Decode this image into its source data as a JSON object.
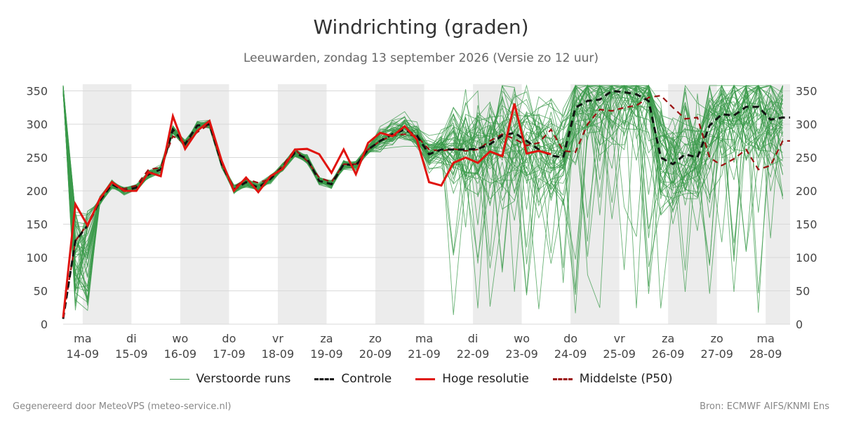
{
  "title": "Windrichting (graden)",
  "subtitle": "Leeuwarden, zondag 13 september 2026 (Versie zo 12 uur)",
  "footer": {
    "left": "Gegenereerd door MeteoVPS (meteo-service.nl)",
    "right": "Bron: ECMWF AIFS/KNMI Ens"
  },
  "legend": [
    {
      "label": "Verstoorde runs",
      "color": "#3a9a4a",
      "style": "thin"
    },
    {
      "label": "Controle",
      "color": "#111111",
      "style": "dashed"
    },
    {
      "label": "Hoge resolutie",
      "color": "#e0140f",
      "style": "solid"
    },
    {
      "label": "Middelste (P50)",
      "color": "#9b1010",
      "style": "dashed"
    }
  ],
  "chart_data": {
    "type": "line",
    "ylim": [
      0,
      360
    ],
    "yticks": [
      0,
      50,
      100,
      150,
      200,
      250,
      300,
      350
    ],
    "x_range_days": [
      13.6,
      28.5
    ],
    "x_ticks": [
      {
        "day": "ma",
        "date": "14-09"
      },
      {
        "day": "di",
        "date": "15-09"
      },
      {
        "day": "wo",
        "date": "16-09"
      },
      {
        "day": "do",
        "date": "17-09"
      },
      {
        "day": "vr",
        "date": "18-09"
      },
      {
        "day": "za",
        "date": "19-09"
      },
      {
        "day": "zo",
        "date": "20-09"
      },
      {
        "day": "ma",
        "date": "21-09"
      },
      {
        "day": "di",
        "date": "22-09"
      },
      {
        "day": "wo",
        "date": "23-09"
      },
      {
        "day": "do",
        "date": "24-09"
      },
      {
        "day": "vr",
        "date": "25-09"
      },
      {
        "day": "za",
        "date": "26-09"
      },
      {
        "day": "zo",
        "date": "27-09"
      },
      {
        "day": "ma",
        "date": "28-09"
      }
    ],
    "grid": true,
    "shaded_bands_note": "alternating grey day bands",
    "series": [
      {
        "name": "Hoge resolutie",
        "color": "#e0140f",
        "x": [
          13.6,
          13.85,
          14.1,
          14.35,
          14.6,
          14.85,
          15.1,
          15.35,
          15.6,
          15.85,
          16.1,
          16.35,
          16.6,
          16.85,
          17.1,
          17.35,
          17.6,
          17.85,
          18.1,
          18.35,
          18.6,
          18.85,
          19.1,
          19.35,
          19.6,
          19.85,
          20.1,
          20.35,
          20.6,
          20.85,
          21.1,
          21.35,
          21.6,
          21.85,
          22.1,
          22.35,
          22.6,
          22.85,
          23.1,
          23.35,
          23.6
        ],
        "y": [
          10,
          180,
          148,
          188,
          213,
          200,
          200,
          228,
          222,
          312,
          263,
          290,
          305,
          245,
          200,
          220,
          198,
          222,
          233,
          262,
          263,
          255,
          227,
          262,
          225,
          272,
          287,
          282,
          297,
          277,
          213,
          208,
          242,
          250,
          242,
          259,
          252,
          331,
          256,
          260,
          255
        ]
      },
      {
        "name": "Controle",
        "color": "#111111",
        "x": [
          13.6,
          13.85,
          14.1,
          14.35,
          14.6,
          14.85,
          15.1,
          15.35,
          15.6,
          15.85,
          16.1,
          16.35,
          16.6,
          16.85,
          17.1,
          17.35,
          17.6,
          17.85,
          18.1,
          18.35,
          18.6,
          18.85,
          19.1,
          19.35,
          19.6,
          19.85,
          20.1,
          20.35,
          20.6,
          20.85,
          21.1,
          21.35,
          21.6,
          21.85,
          22.1,
          22.35,
          22.6,
          22.85,
          23.1,
          23.35,
          23.6,
          23.85,
          24.1,
          24.35,
          24.6,
          24.85,
          25.1,
          25.35,
          25.6,
          25.85,
          26.1,
          26.35,
          26.6,
          26.85,
          27.1,
          27.35,
          27.6,
          27.85,
          28.1,
          28.35,
          28.5
        ],
        "y": [
          8,
          125,
          148,
          185,
          210,
          200,
          205,
          225,
          232,
          292,
          270,
          298,
          300,
          240,
          202,
          213,
          205,
          218,
          236,
          257,
          248,
          215,
          210,
          240,
          238,
          262,
          275,
          285,
          292,
          283,
          255,
          262,
          262,
          262,
          263,
          270,
          283,
          287,
          275,
          262,
          253,
          250,
          325,
          335,
          337,
          350,
          348,
          345,
          335,
          250,
          240,
          255,
          250,
          298,
          315,
          313,
          326,
          326,
          307,
          310,
          310
        ]
      },
      {
        "name": "Middelste (P50)",
        "color": "#9b1010",
        "x": [
          13.6,
          13.85,
          14.1,
          14.35,
          14.6,
          14.85,
          15.1,
          15.35,
          15.6,
          15.85,
          16.1,
          16.35,
          16.6,
          16.85,
          17.1,
          17.35,
          17.6,
          17.85,
          18.1,
          18.35,
          18.6,
          18.85,
          19.1,
          19.35,
          19.6,
          19.85,
          20.1,
          20.35,
          20.6,
          20.85,
          21.1,
          21.35,
          21.6,
          21.85,
          22.1,
          22.35,
          22.6,
          22.85,
          23.1,
          23.35,
          23.6,
          23.85,
          24.1,
          24.35,
          24.6,
          24.85,
          25.1,
          25.35,
          25.6,
          25.85,
          26.1,
          26.35,
          26.6,
          26.85,
          27.1,
          27.35,
          27.6,
          27.85,
          28.1,
          28.35,
          28.5
        ],
        "y": [
          8,
          125,
          150,
          185,
          210,
          203,
          208,
          232,
          235,
          282,
          272,
          288,
          300,
          240,
          205,
          218,
          212,
          218,
          238,
          262,
          245,
          220,
          213,
          240,
          240,
          262,
          275,
          283,
          285,
          282,
          262,
          260,
          263,
          260,
          262,
          275,
          285,
          278,
          268,
          272,
          292,
          260,
          258,
          300,
          322,
          320,
          325,
          328,
          340,
          343,
          325,
          308,
          310,
          250,
          238,
          248,
          262,
          232,
          238,
          275,
          275
        ]
      }
    ],
    "ensemble_members": {
      "name": "Verstoorde runs",
      "color": "#3a9a4a",
      "count": 50,
      "note": "50 perturbed runs; near 200-300 until ~20-09, then widely spread between 0 and 360"
    }
  }
}
